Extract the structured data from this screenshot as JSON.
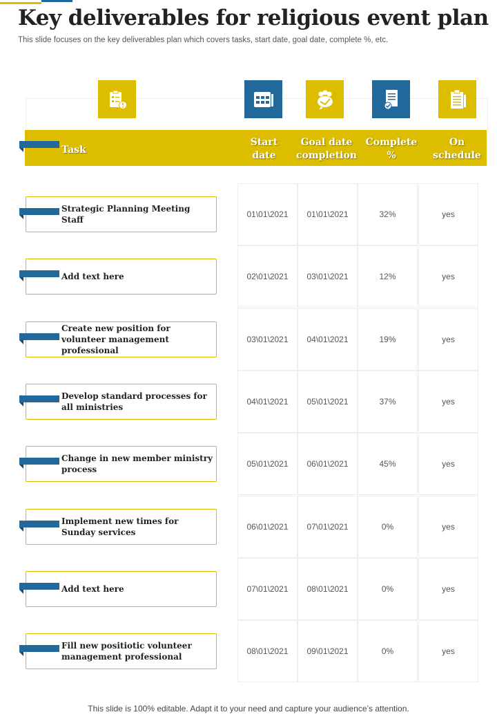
{
  "title": "Key deliverables for religious event plan",
  "subtitle": "This slide focuses on the key deliverables plan which covers tasks, start date, goal date, complete %, etc.",
  "headers": {
    "task": "Task",
    "start": "Start date",
    "goal": "Goal date completion",
    "complete": "Complete %",
    "schedule": "On schedule"
  },
  "rows": [
    {
      "task": "Strategic Planning Meeting Staff",
      "start": "01\\01\\2021",
      "goal": "01\\01\\2021",
      "complete": "32%",
      "schedule": "yes"
    },
    {
      "task": "Add text here",
      "start": "02\\01\\2021",
      "goal": "03\\01\\2021",
      "complete": "12%",
      "schedule": "yes"
    },
    {
      "task": "Create new position for volunteer management professional",
      "start": "03\\01\\2021",
      "goal": "04\\01\\2021",
      "complete": "19%",
      "schedule": "yes"
    },
    {
      "task": "Develop standard processes for all ministries",
      "start": "04\\01\\2021",
      "goal": "05\\01\\2021",
      "complete": "37%",
      "schedule": "yes"
    },
    {
      "task": "Change in new member ministry process",
      "start": "05\\01\\2021",
      "goal": "06\\01\\2021",
      "complete": "45%",
      "schedule": "yes"
    },
    {
      "task": "Implement new times for Sunday services",
      "start": "06\\01\\2021",
      "goal": "07\\01\\2021",
      "complete": "0%",
      "schedule": "yes"
    },
    {
      "task": "Add text here",
      "start": "07\\01\\2021",
      "goal": "08\\01\\2021",
      "complete": "0%",
      "schedule": "yes"
    },
    {
      "task": "Fill new positiotic volunteer management professional",
      "start": "08\\01\\2021",
      "goal": "09\\01\\2021",
      "complete": "0%",
      "schedule": "yes"
    }
  ],
  "footer": "This slide is 100% editable. Adapt it to your need and capture your audience’s attention.",
  "colors": {
    "yellow": "#dcbd00",
    "blue": "#23689b"
  }
}
